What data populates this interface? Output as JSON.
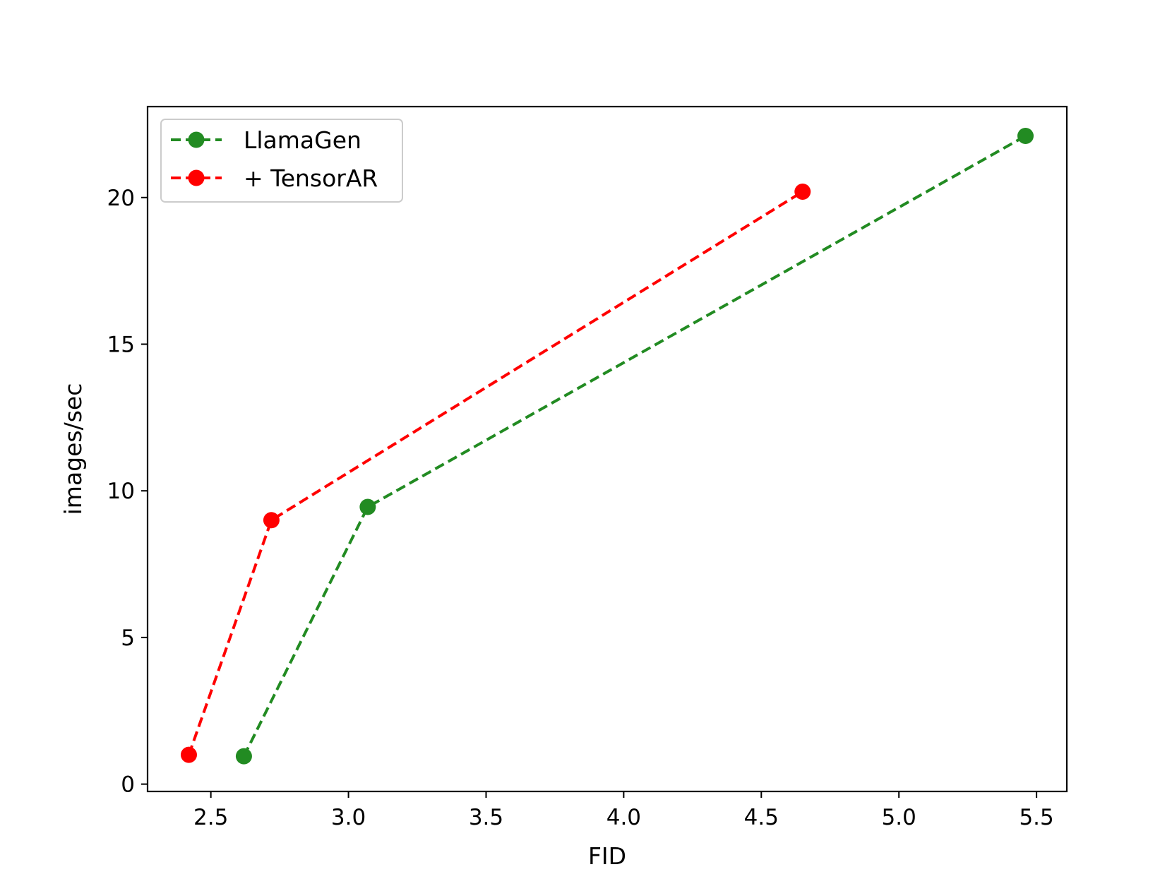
{
  "chart_data": {
    "type": "line",
    "xlabel": "FID",
    "ylabel": "images/sec",
    "xlim": [
      2.27,
      5.61
    ],
    "ylim": [
      -0.25,
      23.1
    ],
    "xticks": [
      2.5,
      3.0,
      3.5,
      4.0,
      4.5,
      5.0,
      5.5
    ],
    "xtick_labels": [
      "2.5",
      "3.0",
      "3.5",
      "4.0",
      "4.5",
      "5.0",
      "5.5"
    ],
    "yticks": [
      0,
      5,
      10,
      15,
      20
    ],
    "ytick_labels": [
      "0",
      "5",
      "10",
      "15",
      "20"
    ],
    "grid": false,
    "legend_position": "top-left",
    "series": [
      {
        "name": "LlamaGen",
        "color": "#228b22",
        "line_style": "dashed",
        "marker": "circle",
        "x": [
          2.62,
          3.07,
          5.46
        ],
        "y": [
          0.95,
          9.45,
          22.1
        ]
      },
      {
        "name": "+ TensorAR",
        "color": "#ff0000",
        "line_style": "dashed",
        "marker": "circle",
        "x": [
          2.42,
          2.72,
          4.65
        ],
        "y": [
          1.0,
          9.0,
          20.2
        ]
      }
    ]
  }
}
